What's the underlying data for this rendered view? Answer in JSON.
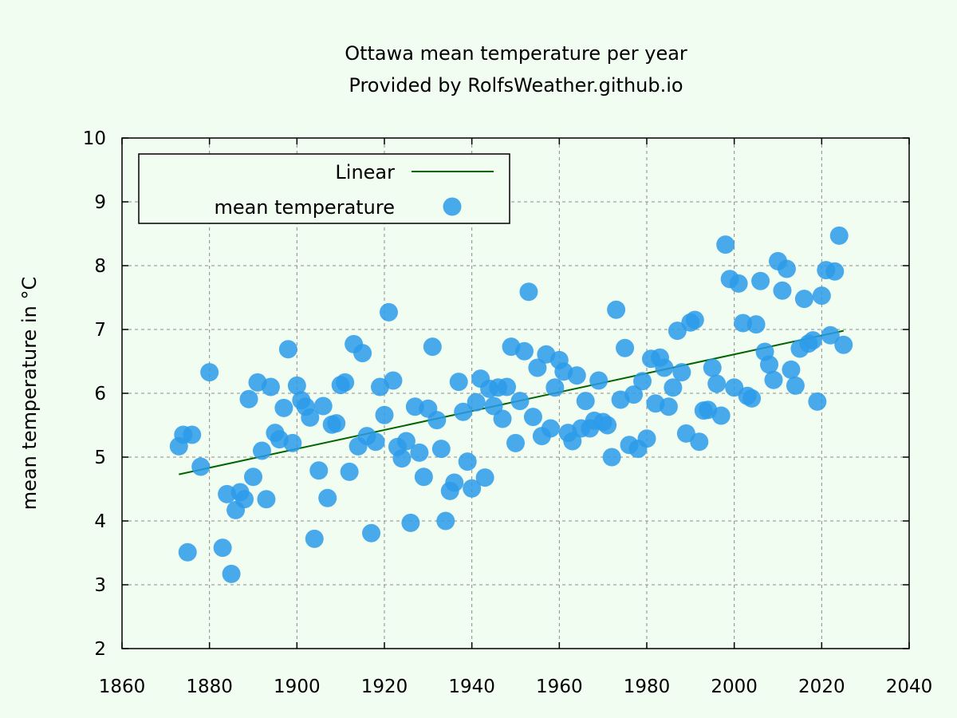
{
  "colors": {
    "background": "#f1fdf1",
    "points": "#2b9bea",
    "trend": "#006400"
  },
  "chart_data": {
    "type": "scatter",
    "title": "Ottawa mean temperature per year",
    "subtitle": "Provided by RolfsWeather.github.io",
    "xlabel": "",
    "ylabel": "mean temperature in °C",
    "xlim": [
      1860,
      2040
    ],
    "ylim": [
      2,
      10
    ],
    "xticks": [
      1860,
      1880,
      1900,
      1920,
      1940,
      1960,
      1980,
      2000,
      2020,
      2040
    ],
    "yticks": [
      2,
      3,
      4,
      5,
      6,
      7,
      8,
      9,
      10
    ],
    "grid": true,
    "legend_position": "top-left",
    "legend": [
      {
        "label": "Linear",
        "kind": "line"
      },
      {
        "label": "mean temperature",
        "kind": "point"
      }
    ],
    "trendline": {
      "name": "Linear",
      "x": [
        1873,
        2025
      ],
      "y": [
        4.73,
        6.98
      ]
    },
    "series": [
      {
        "name": "mean temperature",
        "x": [
          1873,
          1874,
          1875,
          1876,
          1878,
          1880,
          1883,
          1884,
          1885,
          1886,
          1887,
          1888,
          1889,
          1890,
          1891,
          1892,
          1893,
          1894,
          1895,
          1896,
          1897,
          1898,
          1899,
          1900,
          1901,
          1902,
          1903,
          1904,
          1905,
          1906,
          1907,
          1908,
          1909,
          1910,
          1911,
          1912,
          1913,
          1914,
          1915,
          1916,
          1917,
          1918,
          1919,
          1920,
          1921,
          1922,
          1923,
          1924,
          1925,
          1926,
          1927,
          1928,
          1929,
          1930,
          1931,
          1932,
          1933,
          1934,
          1935,
          1936,
          1937,
          1938,
          1939,
          1940,
          1941,
          1942,
          1943,
          1944,
          1945,
          1946,
          1947,
          1948,
          1949,
          1950,
          1951,
          1952,
          1953,
          1954,
          1955,
          1956,
          1957,
          1958,
          1959,
          1960,
          1961,
          1962,
          1963,
          1964,
          1965,
          1966,
          1967,
          1968,
          1969,
          1970,
          1971,
          1972,
          1973,
          1974,
          1975,
          1976,
          1977,
          1978,
          1979,
          1980,
          1981,
          1982,
          1983,
          1984,
          1985,
          1986,
          1987,
          1988,
          1989,
          1990,
          1991,
          1992,
          1993,
          1994,
          1995,
          1996,
          1997,
          1998,
          1999,
          2000,
          2001,
          2002,
          2003,
          2004,
          2005,
          2006,
          2007,
          2008,
          2009,
          2010,
          2011,
          2012,
          2013,
          2014,
          2015,
          2016,
          2017,
          2018,
          2019,
          2020,
          2021,
          2022,
          2023,
          2024,
          2025
        ],
        "y": [
          5.17,
          5.35,
          3.51,
          5.35,
          4.85,
          6.33,
          3.58,
          4.42,
          3.17,
          4.17,
          4.45,
          4.34,
          5.91,
          4.69,
          6.17,
          5.1,
          4.34,
          6.1,
          5.38,
          5.28,
          5.77,
          6.69,
          5.22,
          6.12,
          5.89,
          5.79,
          5.62,
          3.72,
          4.79,
          5.8,
          4.36,
          5.51,
          5.53,
          6.13,
          6.17,
          4.77,
          6.77,
          5.17,
          6.63,
          5.33,
          3.81,
          5.24,
          6.1,
          5.66,
          7.27,
          6.2,
          5.16,
          4.98,
          5.25,
          3.97,
          5.79,
          5.07,
          4.69,
          5.76,
          6.73,
          5.58,
          5.13,
          4.0,
          4.47,
          4.6,
          6.18,
          5.71,
          4.93,
          4.51,
          5.86,
          6.23,
          4.68,
          6.07,
          5.8,
          6.09,
          5.6,
          6.1,
          6.73,
          5.22,
          5.88,
          6.66,
          7.59,
          5.63,
          6.4,
          5.33,
          6.61,
          5.45,
          6.09,
          6.52,
          6.34,
          5.38,
          5.25,
          6.28,
          5.45,
          5.88,
          5.45,
          5.57,
          6.2,
          5.55,
          5.5,
          5.0,
          7.31,
          5.9,
          6.71,
          5.19,
          5.98,
          5.13,
          6.19,
          5.29,
          6.54,
          5.84,
          6.56,
          6.4,
          5.79,
          6.09,
          6.98,
          6.33,
          5.37,
          7.11,
          7.15,
          5.24,
          5.73,
          5.74,
          6.4,
          6.15,
          5.65,
          8.33,
          7.79,
          6.09,
          7.72,
          7.1,
          5.96,
          5.92,
          7.08,
          7.76,
          6.65,
          6.45,
          6.21,
          8.07,
          7.61,
          7.95,
          6.37,
          6.12,
          6.7,
          7.48,
          6.78,
          6.83,
          5.87,
          7.53,
          7.93,
          6.91,
          7.91,
          8.47,
          6.76
        ]
      }
    ]
  }
}
